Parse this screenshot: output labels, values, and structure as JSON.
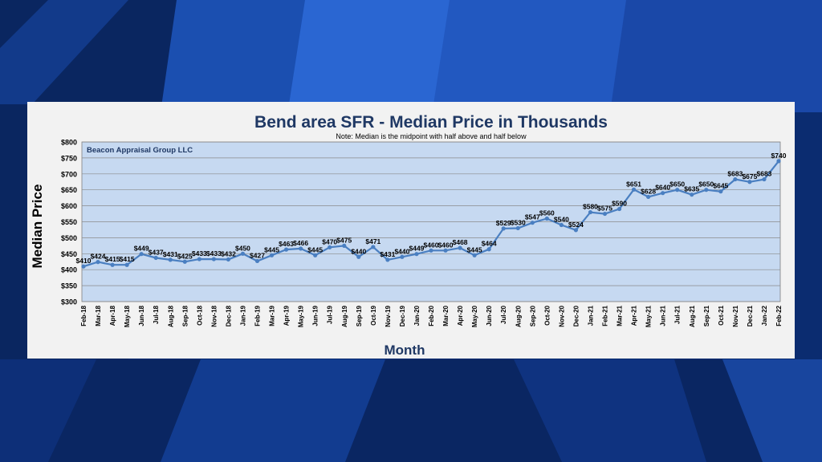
{
  "chart_data": {
    "type": "line",
    "title": "Bend area SFR - Median Price in Thousands",
    "subtitle": "Note: Median is the midpoint with half above and half below",
    "watermark": "Beacon Appraisal Group LLC",
    "xlabel": "Month",
    "ylabel": "Median Price",
    "ylim": [
      300,
      800
    ],
    "yticks": [
      "$300",
      "$350",
      "$400",
      "$450",
      "$500",
      "$550",
      "$600",
      "$650",
      "$700",
      "$750",
      "$800"
    ],
    "grid": true,
    "categories": [
      "Feb-18",
      "Mar-18",
      "Apr-18",
      "May-18",
      "Jun-18",
      "Jul-18",
      "Aug-18",
      "Sep-18",
      "Oct-18",
      "Nov-18",
      "Dec-18",
      "Jan-19",
      "Feb-19",
      "Mar-19",
      "Apr-19",
      "May-19",
      "Jun-19",
      "Jul-19",
      "Aug-19",
      "Sep-19",
      "Oct-19",
      "Nov-19",
      "Dec-19",
      "Jan-20",
      "Feb-20",
      "Mar-20",
      "Apr-20",
      "May-20",
      "Jun-20",
      "Jul-20",
      "Aug-20",
      "Sep-20",
      "Oct-20",
      "Nov-20",
      "Dec-20",
      "Jan-21",
      "Feb-21",
      "Mar-21",
      "Apr-21",
      "May-21",
      "Jun-21",
      "Jul-21",
      "Aug-21",
      "Sep-21",
      "Oct-21",
      "Nov-21",
      "Dec-21",
      "Jan-22",
      "Feb-22"
    ],
    "values": [
      410,
      424,
      415,
      415,
      449,
      437,
      431,
      425,
      433,
      433,
      432,
      450,
      427,
      445,
      463,
      466,
      445,
      470,
      475,
      440,
      471,
      431,
      440,
      449,
      460,
      460,
      468,
      445,
      464,
      529,
      530,
      547,
      560,
      540,
      524,
      580,
      575,
      590,
      651,
      628,
      640,
      650,
      635,
      650,
      645,
      683,
      675,
      683,
      740
    ],
    "labels": [
      "$410",
      "$424",
      "$415",
      "$415",
      "$449",
      "$437",
      "$431",
      "$425",
      "$433",
      "$433",
      "$432",
      "$450",
      "$427",
      "$445",
      "$463",
      "$466",
      "$445",
      "$470",
      "$475",
      "$440",
      "$471",
      "$431",
      "$440",
      "$449",
      "$460",
      "$460",
      "$468",
      "$445",
      "$464",
      "$529",
      "$530",
      "$547",
      "$560",
      "$540",
      "$524",
      "$580",
      "$575",
      "$590",
      "$651",
      "$628",
      "$640",
      "$650",
      "$635",
      "$650",
      "$645",
      "$683",
      "$675",
      "$683",
      "$740"
    ],
    "line_color": "#4a7fc1",
    "plot_bg": "#c6d9f1",
    "title_color": "#1f3864"
  }
}
